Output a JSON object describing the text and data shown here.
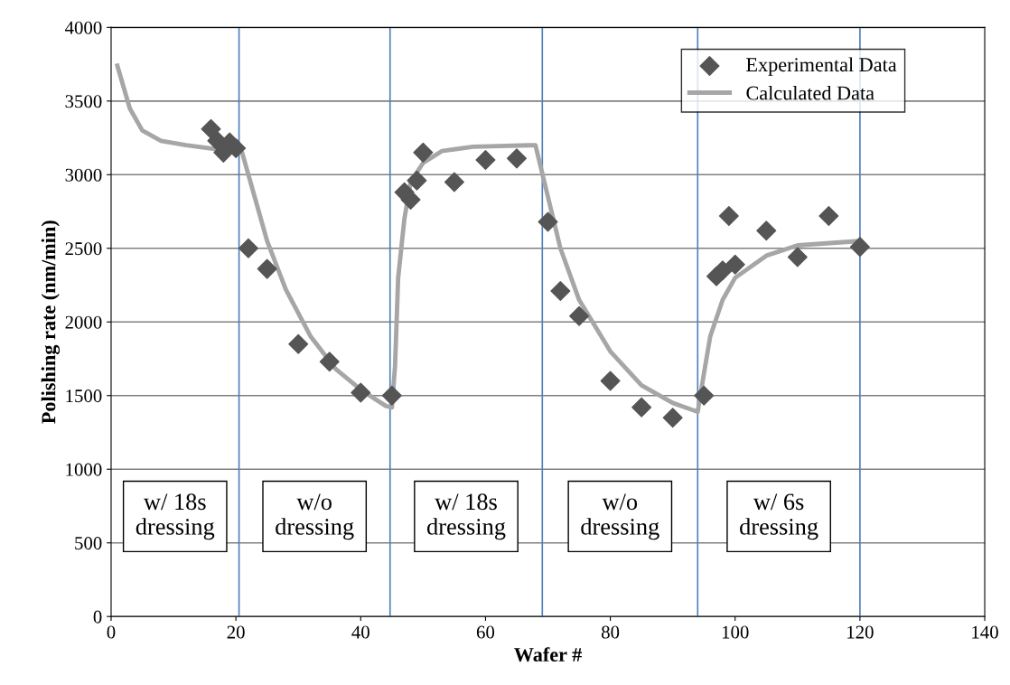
{
  "chart_data": {
    "type": "scatter",
    "xlabel": "Wafer #",
    "ylabel": "Polishing rate (nm/min)",
    "xlim": [
      0,
      140
    ],
    "xticks": [
      0,
      20,
      40,
      60,
      80,
      100,
      120,
      140
    ],
    "ylim": [
      0,
      4000
    ],
    "yticks": [
      0,
      500,
      1000,
      1500,
      2000,
      2500,
      3000,
      3500,
      4000
    ],
    "grid": "y",
    "legend": "top right",
    "series": [
      {
        "name": "Experimental Data",
        "marker": "diamond",
        "color": "#555555",
        "x": [
          16,
          17,
          18,
          19,
          20,
          22,
          25,
          30,
          35,
          40,
          45,
          47,
          48,
          49,
          50,
          55,
          60,
          65,
          70,
          72,
          75,
          80,
          85,
          90,
          95,
          97,
          98,
          99,
          100,
          105,
          110,
          115,
          120
        ],
        "values": [
          3310,
          3230,
          3150,
          3220,
          3180,
          2500,
          2360,
          1850,
          1730,
          1520,
          1500,
          2880,
          2830,
          2960,
          3150,
          2950,
          3100,
          3110,
          2680,
          2210,
          2040,
          1600,
          1420,
          1350,
          1500,
          2310,
          2350,
          2720,
          2390,
          2620,
          2440,
          2720,
          2510
        ]
      },
      {
        "name": "Calculated Data",
        "type": "line",
        "marker": "none",
        "line_style": "solid",
        "color": "#a6a6a6",
        "x": [
          1,
          3,
          5,
          8,
          12,
          21,
          23,
          25,
          28,
          32,
          36,
          40,
          44,
          45,
          45.5,
          46,
          47,
          48,
          50,
          53,
          58,
          67,
          68,
          70,
          72,
          75,
          80,
          85,
          90,
          94,
          95,
          96,
          98,
          100,
          105,
          110,
          120
        ],
        "values": [
          3740,
          3450,
          3300,
          3230,
          3200,
          3150,
          2850,
          2550,
          2220,
          1900,
          1680,
          1540,
          1430,
          1420,
          1700,
          2300,
          2700,
          2950,
          3080,
          3160,
          3190,
          3200,
          3200,
          2850,
          2500,
          2150,
          1800,
          1570,
          1450,
          1390,
          1650,
          1900,
          2150,
          2300,
          2450,
          2520,
          2550
        ]
      }
    ],
    "ref_lines": [
      {
        "axis": "x",
        "value": 20.5,
        "color": "#4f81bd"
      },
      {
        "axis": "x",
        "value": 44.7,
        "color": "#4f81bd"
      },
      {
        "axis": "x",
        "value": 69.1,
        "color": "#4f81bd"
      },
      {
        "axis": "x",
        "value": 94,
        "color": "#4f81bd"
      },
      {
        "axis": "x",
        "value": 120,
        "color": "#4f81bd"
      }
    ],
    "annotations": [
      "w/ 18s\ndressing",
      "w/o\ndressing",
      "w/ 18s\ndressing",
      "w/o\ndressing",
      "w/ 6s\ndressing"
    ]
  }
}
